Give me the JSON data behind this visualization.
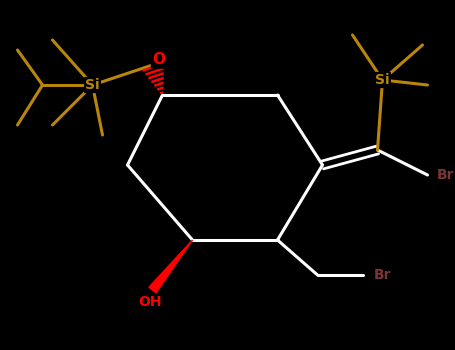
{
  "background": "#000000",
  "bond_color": "#ffffff",
  "Si_color": "#b8860b",
  "O_color": "#ff0000",
  "Br_color": "#7a3535",
  "OH_color": "#ff0000",
  "figsize": [
    4.55,
    3.5
  ],
  "dpi": 100,
  "xlim": [
    0,
    9
  ],
  "ylim": [
    0,
    7
  ]
}
